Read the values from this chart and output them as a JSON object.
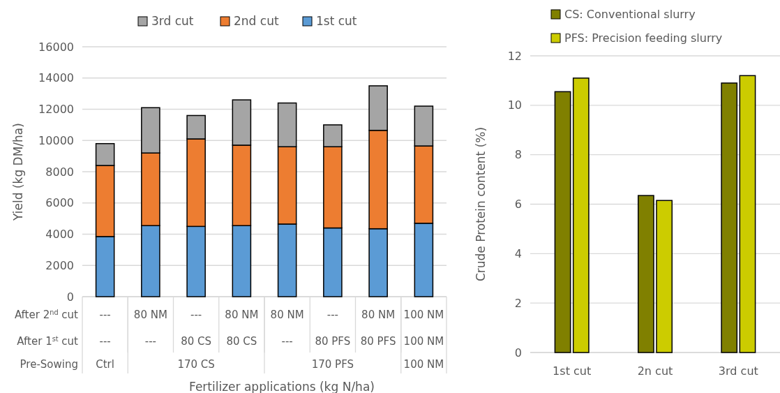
{
  "chart_data": [
    {
      "type": "bar",
      "stacked": true,
      "ylabel": "Yield (kg DM/ha)",
      "xlabel": "Fertilizer applications (kg N/ha)",
      "categories": [
        "---",
        "80 NM",
        "---",
        "80 NM",
        "80 NM",
        "---",
        "80 NM",
        "100 NM"
      ],
      "series": [
        {
          "name": "1st cut",
          "color": "#5b9bd5",
          "values": [
            3850,
            4550,
            4500,
            4550,
            4650,
            4400,
            4350,
            4700
          ]
        },
        {
          "name": "2nd cut",
          "color": "#ed7d31",
          "values": [
            4550,
            4650,
            5600,
            5150,
            4950,
            5200,
            6300,
            4950
          ]
        },
        {
          "name": "3rd cut",
          "color": "#a5a5a5",
          "values": [
            1400,
            2900,
            1500,
            2900,
            2800,
            1400,
            2850,
            2550
          ]
        }
      ],
      "ylim": [
        0,
        16000
      ],
      "yticks": [
        0,
        2000,
        4000,
        6000,
        8000,
        10000,
        12000,
        14000,
        16000
      ],
      "grid": "y",
      "legend": "top",
      "annotations": [
        "After 2$^{nd}$ cut",
        "After 1$^{st}$ cut",
        "Pre-Sowing",
        "---",
        "---",
        "80 CS",
        "80 CS",
        "---",
        "80 PFS",
        "80 PFS",
        "100 NM",
        "Ctrl",
        "170 CS",
        "170 PFS",
        "100 NM"
      ]
    },
    {
      "type": "bar",
      "ylabel": "Crude Protein content (%)",
      "categories": [
        "1st cut",
        "2n cut",
        "3rd cut"
      ],
      "series": [
        {
          "name": "CS: Conventional slurry",
          "color": "#808000",
          "values": [
            10.55,
            6.35,
            10.9
          ]
        },
        {
          "name": "PFS: Precision feeding slurry",
          "color": "#cccc00",
          "values": [
            11.1,
            6.15,
            11.2
          ]
        }
      ],
      "ylim": [
        0,
        12
      ],
      "yticks": [
        0,
        2,
        4,
        6,
        8,
        10,
        12
      ],
      "grid": "y",
      "legend": "top"
    }
  ]
}
